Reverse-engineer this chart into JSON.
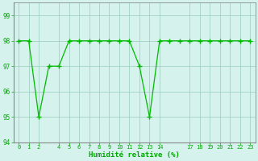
{
  "x": [
    0,
    1,
    2,
    3,
    4,
    5,
    6,
    7,
    8,
    9,
    10,
    11,
    12,
    13,
    14,
    15,
    16,
    17,
    18,
    19,
    20,
    21,
    22,
    23
  ],
  "y": [
    98,
    98,
    95,
    97,
    97,
    98,
    98,
    98,
    98,
    98,
    98,
    98,
    97,
    95,
    98,
    98,
    98,
    98,
    98,
    98,
    98,
    98,
    98,
    98
  ],
  "ylim": [
    94,
    99.5
  ],
  "xlim": [
    -0.5,
    23.5
  ],
  "yticks": [
    94,
    95,
    96,
    97,
    98,
    99
  ],
  "xtick_positions": [
    0,
    1,
    2,
    4,
    5,
    6,
    7,
    8,
    9,
    10,
    11,
    12,
    13,
    14,
    17,
    18,
    19,
    20,
    21,
    22,
    23
  ],
  "xtick_labels": [
    "0",
    "1",
    "2",
    "4",
    "5",
    "6",
    "7",
    "8",
    "9",
    "10",
    "11",
    "12",
    "13",
    "14",
    "17",
    "18",
    "19",
    "20",
    "21",
    "22",
    "23"
  ],
  "xlabel": "Humidité relative (%)",
  "line_color": "#00bb00",
  "marker_color": "#00bb00",
  "bg_color": "#d5f2ec",
  "grid_color": "#99ccbb",
  "axis_color": "#008800",
  "tick_label_color": "#00aa00",
  "xlabel_color": "#00aa00"
}
